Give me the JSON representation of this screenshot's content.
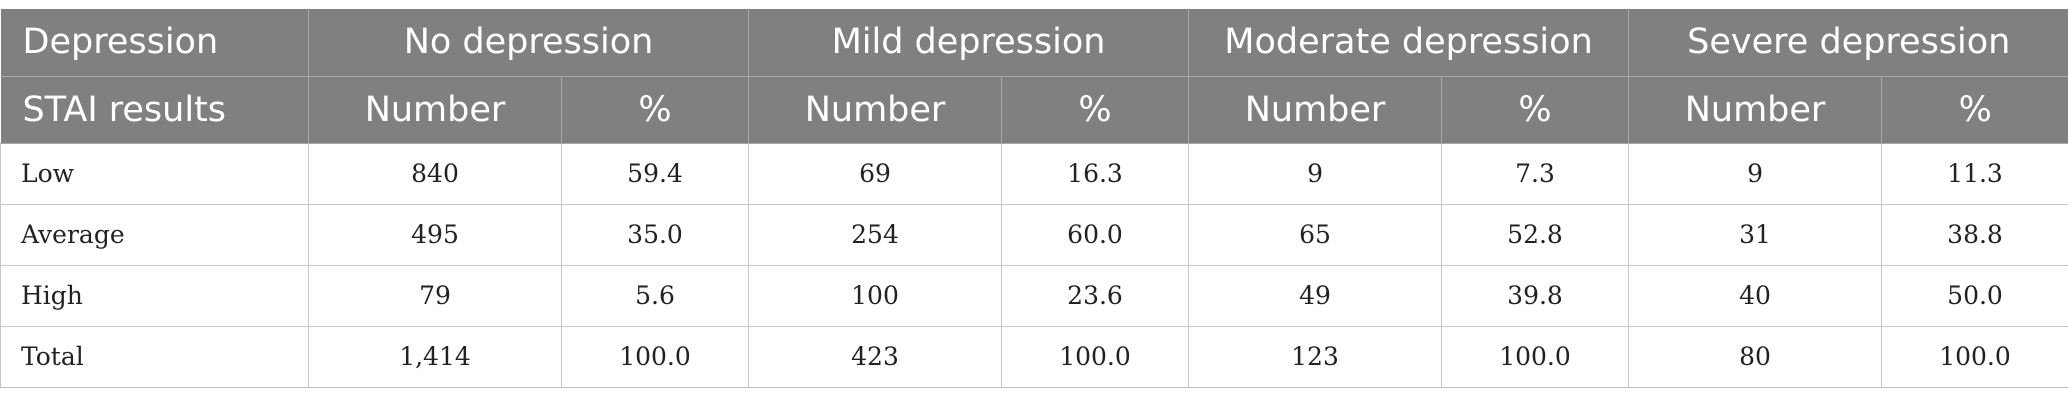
{
  "table": {
    "header_row1": {
      "corner": "Depression",
      "groups": [
        "No depression",
        "Mild depression",
        "Moderate depression",
        "Severe depression"
      ]
    },
    "header_row2": {
      "corner": "STAI results",
      "subs": [
        "Number",
        "%",
        "Number",
        "%",
        "Number",
        "%",
        "Number",
        "%"
      ]
    },
    "rows": [
      {
        "label": "Low",
        "cells": [
          "840",
          "59.4",
          "69",
          "16.3",
          "9",
          "7.3",
          "9",
          "11.3"
        ]
      },
      {
        "label": "Average",
        "cells": [
          "495",
          "35.0",
          "254",
          "60.0",
          "65",
          "52.8",
          "31",
          "38.8"
        ]
      },
      {
        "label": "High",
        "cells": [
          "79",
          "5.6",
          "100",
          "23.6",
          "49",
          "39.8",
          "40",
          "50.0"
        ]
      },
      {
        "label": "Total",
        "cells": [
          "1,414",
          "100.0",
          "423",
          "100.0",
          "123",
          "100.0",
          "80",
          "100.0"
        ]
      }
    ],
    "colors": {
      "header_bg": "#808080",
      "header_text": "#ffffff",
      "grid_line": "#c6c6c6"
    }
  }
}
